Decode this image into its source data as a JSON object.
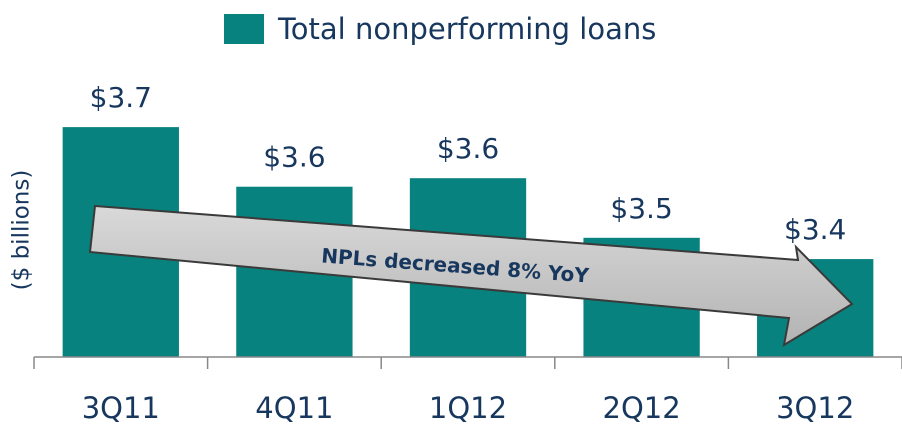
{
  "chart_data": {
    "type": "bar",
    "ylabel": "($ billions)",
    "categories": [
      "3Q11",
      "4Q11",
      "1Q12",
      "2Q12",
      "3Q12"
    ],
    "series": [
      {
        "name": "Total nonperforming loans",
        "color": "#08827f",
        "values": [
          3.74,
          3.6,
          3.62,
          3.48,
          3.43
        ],
        "value_labels": [
          "$3.7",
          "$3.6",
          "$3.6",
          "$3.5",
          "$3.4"
        ]
      }
    ],
    "ylim": [
      3.2,
      3.9
    ],
    "annotation": "NPLs decreased 8% YoY"
  }
}
